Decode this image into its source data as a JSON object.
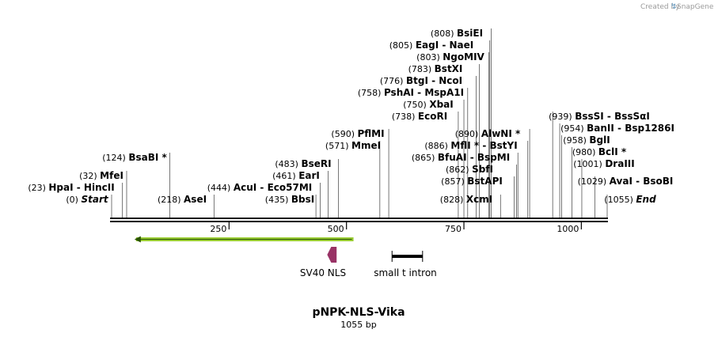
{
  "credit": {
    "created_by": "Created by",
    "brand": "SnapGene"
  },
  "plasmid": {
    "name": "pNPK-NLS-Vika",
    "size_label": "1055 bp",
    "length": 1055
  },
  "ruler": {
    "ticks": [
      {
        "value": 250,
        "label": "250"
      },
      {
        "value": 500,
        "label": "500"
      },
      {
        "value": 750,
        "label": "750"
      },
      {
        "value": 1000,
        "label": "1000"
      }
    ]
  },
  "sites": [
    {
      "pos": 0,
      "pos_label": "(0)",
      "name": "Start",
      "italic": true
    },
    {
      "pos": 23,
      "pos_label": "(23)",
      "name": "HpaI  - HincII"
    },
    {
      "pos": 32,
      "pos_label": "(32)",
      "name": "MfeI"
    },
    {
      "pos": 124,
      "pos_label": "(124)",
      "name": "BsaBI *"
    },
    {
      "pos": 218,
      "pos_label": "(218)",
      "name": "AseI"
    },
    {
      "pos": 435,
      "pos_label": "(435)",
      "name": "BbsI"
    },
    {
      "pos": 444,
      "pos_label": "(444)",
      "name": "AcuI  - Eco57MI"
    },
    {
      "pos": 461,
      "pos_label": "(461)",
      "name": "EarI"
    },
    {
      "pos": 483,
      "pos_label": "(483)",
      "name": "BseRI"
    },
    {
      "pos": 571,
      "pos_label": "(571)",
      "name": "MmeI"
    },
    {
      "pos": 590,
      "pos_label": "(590)",
      "name": "PflMI"
    },
    {
      "pos": 738,
      "pos_label": "(738)",
      "name": "EcoRI"
    },
    {
      "pos": 750,
      "pos_label": "(750)",
      "name": "XbaI"
    },
    {
      "pos": 758,
      "pos_label": "(758)",
      "name": "PshAI  - MspA1I"
    },
    {
      "pos": 776,
      "pos_label": "(776)",
      "name": "BtgI  - NcoI"
    },
    {
      "pos": 783,
      "pos_label": "(783)",
      "name": "BstXI"
    },
    {
      "pos": 803,
      "pos_label": "(803)",
      "name": "NgoMIV"
    },
    {
      "pos": 805,
      "pos_label": "(805)",
      "name": "EagI  - NaeI"
    },
    {
      "pos": 808,
      "pos_label": "(808)",
      "name": "BsiEI"
    },
    {
      "pos": 828,
      "pos_label": "(828)",
      "name": "XcmI"
    },
    {
      "pos": 857,
      "pos_label": "(857)",
      "name": "BstAPI"
    },
    {
      "pos": 862,
      "pos_label": "(862)",
      "name": "SbfI"
    },
    {
      "pos": 865,
      "pos_label": "(865)",
      "name": "BfuAI  - BspMI"
    },
    {
      "pos": 886,
      "pos_label": "(886)",
      "name": "MflI *  - BstYI"
    },
    {
      "pos": 890,
      "pos_label": "(890)",
      "name": "AlwNI *"
    },
    {
      "pos": 939,
      "pos_label": "(939)",
      "name": "BssSI  - BssSαI"
    },
    {
      "pos": 954,
      "pos_label": "(954)",
      "name": "BanII  - Bsp1286I"
    },
    {
      "pos": 958,
      "pos_label": "(958)",
      "name": "BglI"
    },
    {
      "pos": 980,
      "pos_label": "(980)",
      "name": "BclI *"
    },
    {
      "pos": 1001,
      "pos_label": "(1001)",
      "name": "DraIII"
    },
    {
      "pos": 1029,
      "pos_label": "(1029)",
      "name": "AvaI  - BsoBI"
    },
    {
      "pos": 1055,
      "pos_label": "(1055)",
      "name": "End",
      "italic": true
    }
  ],
  "features": [
    {
      "name": "SV40 NLS",
      "start": 459,
      "end": 479,
      "color": "#993366",
      "direction": "reverse"
    },
    {
      "name": "small t intron",
      "start": 597,
      "end": 662,
      "color": "#000000",
      "type": "intron"
    }
  ],
  "orf": {
    "start": 52,
    "end": 515,
    "direction": "reverse",
    "color": "#99cc33"
  },
  "colors": {
    "backbone": "#000000",
    "cut_line": "#555555",
    "credit": "#9a9a9a"
  }
}
